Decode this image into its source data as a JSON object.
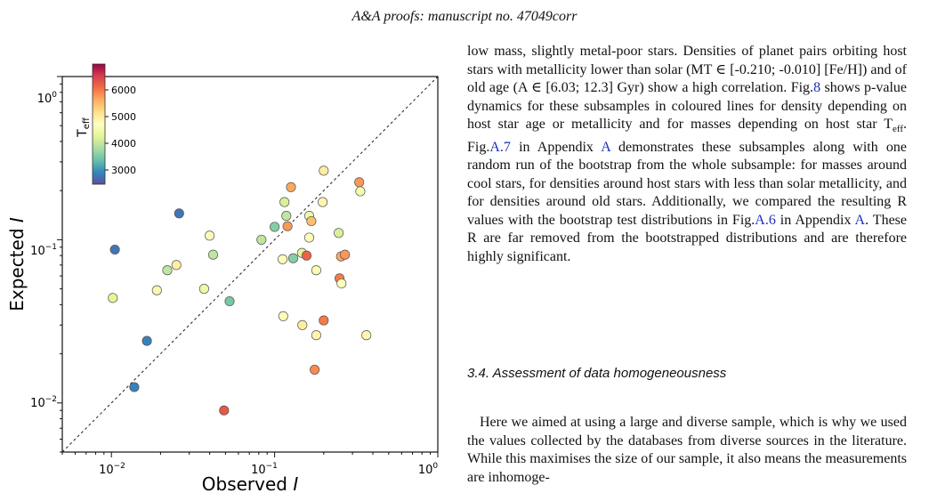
{
  "header": {
    "left_italic": "A&A proofs:",
    "right_text": "manuscript no. 47049corr"
  },
  "chart_data": {
    "type": "scatter",
    "title": "",
    "xlabel": "Observed I",
    "ylabel": "Expected I",
    "xscale": "log",
    "yscale": "log",
    "xlim": [
      0.005,
      1.0
    ],
    "ylim": [
      0.005,
      1.0
    ],
    "x_ticks": [
      "10^-2",
      "10^-1",
      "10^0"
    ],
    "y_ticks": [
      "10^-2",
      "10^-1",
      "10^0"
    ],
    "reference_line": "y = x (dashed)",
    "grid": false,
    "colorbar": {
      "label": "T_eff",
      "ticks": [
        3000,
        4000,
        5000,
        6000
      ],
      "range": [
        2400,
        6900
      ],
      "colormap": "Spectral_r",
      "placement": "top-left inset"
    },
    "points": [
      {
        "x": 0.0105,
        "y": 0.087,
        "teff": 2700
      },
      {
        "x": 0.026,
        "y": 0.145,
        "teff": 2700
      },
      {
        "x": 0.0165,
        "y": 0.024,
        "teff": 2800
      },
      {
        "x": 0.0138,
        "y": 0.0125,
        "teff": 2800
      },
      {
        "x": 0.0102,
        "y": 0.044,
        "teff": 4200
      },
      {
        "x": 0.019,
        "y": 0.049,
        "teff": 4800
      },
      {
        "x": 0.022,
        "y": 0.065,
        "teff": 3900
      },
      {
        "x": 0.025,
        "y": 0.07,
        "teff": 4900
      },
      {
        "x": 0.037,
        "y": 0.05,
        "teff": 4400
      },
      {
        "x": 0.04,
        "y": 0.106,
        "teff": 4700
      },
      {
        "x": 0.042,
        "y": 0.081,
        "teff": 3900
      },
      {
        "x": 0.053,
        "y": 0.042,
        "teff": 3400
      },
      {
        "x": 0.049,
        "y": 0.009,
        "teff": 6200
      },
      {
        "x": 0.083,
        "y": 0.1,
        "teff": 3900
      },
      {
        "x": 0.1,
        "y": 0.12,
        "teff": 3500
      },
      {
        "x": 0.115,
        "y": 0.17,
        "teff": 4100
      },
      {
        "x": 0.118,
        "y": 0.14,
        "teff": 3900
      },
      {
        "x": 0.112,
        "y": 0.076,
        "teff": 4600
      },
      {
        "x": 0.12,
        "y": 0.121,
        "teff": 5700
      },
      {
        "x": 0.126,
        "y": 0.21,
        "teff": 5600
      },
      {
        "x": 0.13,
        "y": 0.077,
        "teff": 3500
      },
      {
        "x": 0.147,
        "y": 0.083,
        "teff": 4200
      },
      {
        "x": 0.157,
        "y": 0.08,
        "teff": 6100
      },
      {
        "x": 0.163,
        "y": 0.14,
        "teff": 4400
      },
      {
        "x": 0.168,
        "y": 0.13,
        "teff": 5400
      },
      {
        "x": 0.163,
        "y": 0.103,
        "teff": 4700
      },
      {
        "x": 0.18,
        "y": 0.065,
        "teff": 4500
      },
      {
        "x": 0.197,
        "y": 0.17,
        "teff": 4800
      },
      {
        "x": 0.2,
        "y": 0.265,
        "teff": 4900
      },
      {
        "x": 0.247,
        "y": 0.11,
        "teff": 4100
      },
      {
        "x": 0.25,
        "y": 0.058,
        "teff": 5900
      },
      {
        "x": 0.255,
        "y": 0.079,
        "teff": 5600
      },
      {
        "x": 0.27,
        "y": 0.081,
        "teff": 5700
      },
      {
        "x": 0.257,
        "y": 0.054,
        "teff": 4700
      },
      {
        "x": 0.33,
        "y": 0.225,
        "teff": 5700
      },
      {
        "x": 0.335,
        "y": 0.198,
        "teff": 4500
      },
      {
        "x": 0.113,
        "y": 0.034,
        "teff": 4700
      },
      {
        "x": 0.148,
        "y": 0.03,
        "teff": 4900
      },
      {
        "x": 0.18,
        "y": 0.026,
        "teff": 4800
      },
      {
        "x": 0.2,
        "y": 0.032,
        "teff": 5900
      },
      {
        "x": 0.176,
        "y": 0.016,
        "teff": 5800
      },
      {
        "x": 0.365,
        "y": 0.026,
        "teff": 4800
      }
    ]
  },
  "text": {
    "para1_part1": "low mass, slightly metal-poor stars. Densities of planet pairs orbiting host stars with metallicity lower than solar (MT ∈ [-0.210; -0.010] [Fe/H]) and of old age (A ∈ [6.03; 12.3] Gyr) show a high correlation. Fig.",
    "ref_fig8": "8",
    "para1_part2": " shows p-value dynamics for these subsamples in coloured lines for density depending on host star age or metallicity and for masses depending on host star T",
    "teff_sub": "eff",
    "para1_part3": ". Fig.",
    "ref_figA7": "A.7",
    "para1_part4": " in Appendix ",
    "ref_appA_1": "A",
    "para1_part5": " demonstrates these subsamples along with one random run of the bootstrap from the whole subsample: for masses around cool stars, for densities around host stars with less than solar metallicity, and for densities around old stars. Additionally, we compared the resulting R values with the bootstrap test distributions in Fig.",
    "ref_figA6": "A.6",
    "para1_part6": " in Appendix ",
    "ref_appA_2": "A",
    "para1_part7": ". These R are far removed from the bootstrapped distributions and are therefore highly significant.",
    "section_heading": "3.4. Assessment of data homogeneousness",
    "para2": "Here we aimed at using a large and diverse sample, which is why we used the values collected by the databases from diverse sources in the literature. While this maximises the size of our sample, it also means the measurements are inhomoge-"
  }
}
